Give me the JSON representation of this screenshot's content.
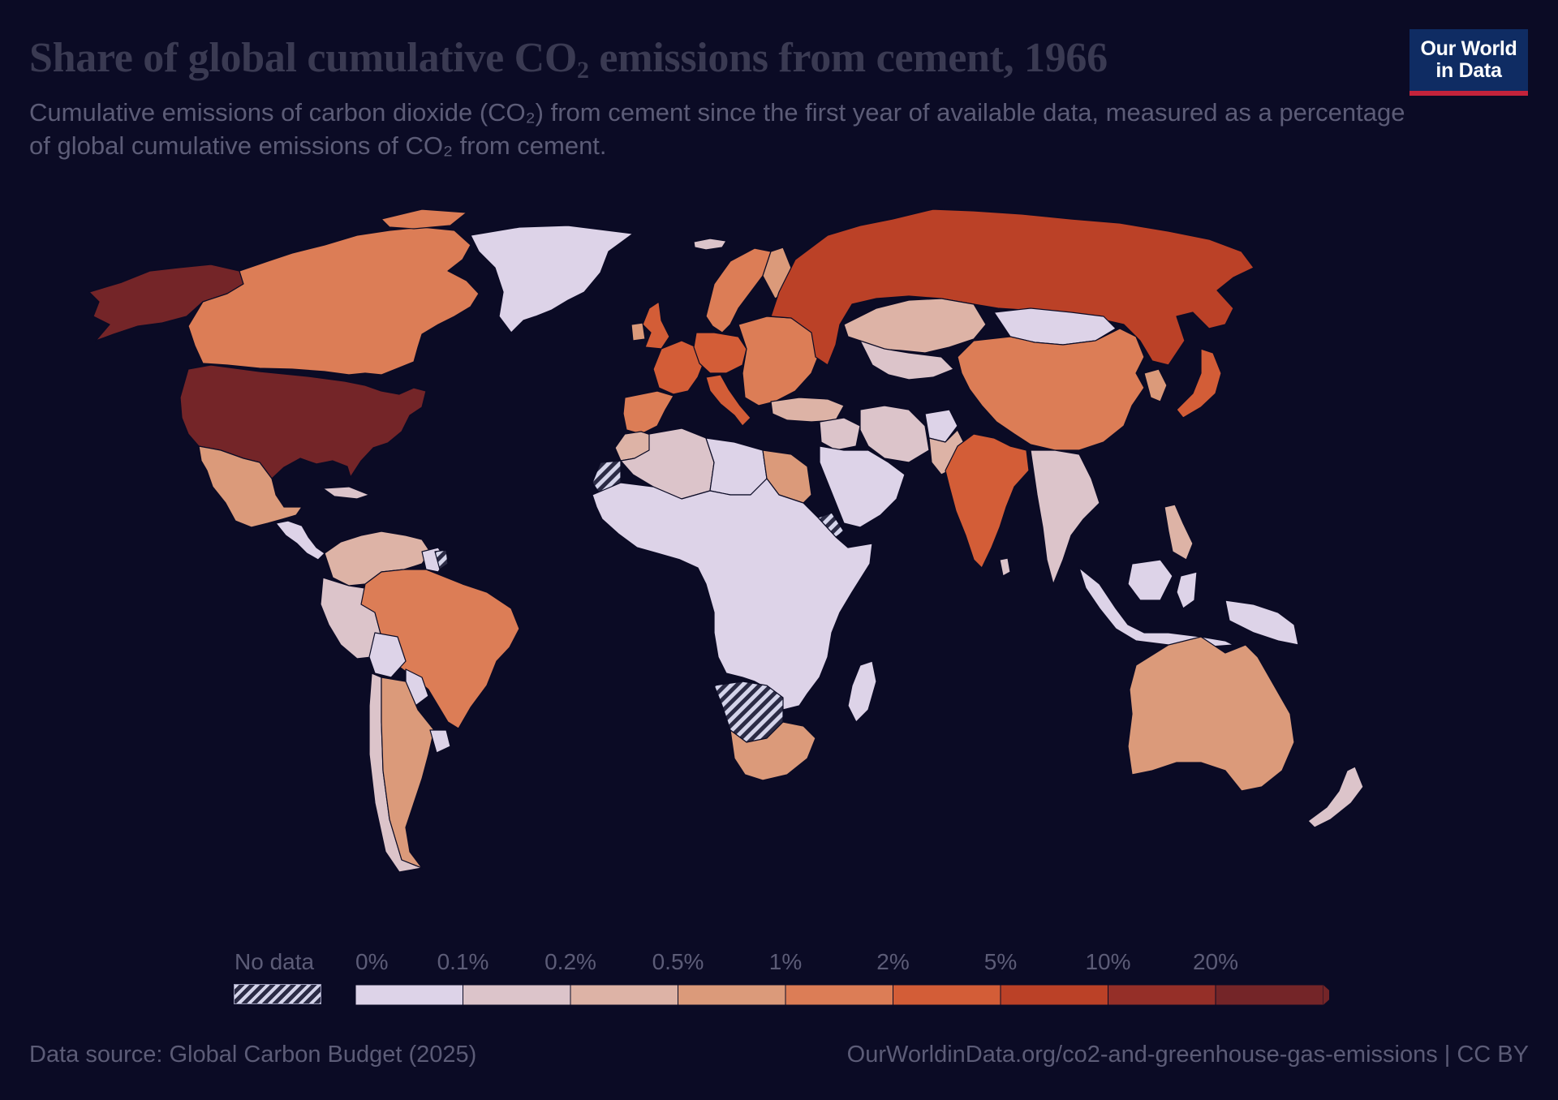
{
  "header": {
    "title_main": "Share of global cumulative CO",
    "title_sub": "2",
    "title_rest": " emissions from cement, 1966",
    "subtitle": "Cumulative emissions of carbon dioxide (CO₂) from cement since the first year of available data, measured as a percentage of global cumulative emissions of CO₂ from cement."
  },
  "logo": {
    "line1": "Our World",
    "line2": "in Data"
  },
  "legend": {
    "no_data_label": "No data",
    "bins": [
      {
        "label": "0%",
        "color": "#ddd3e8"
      },
      {
        "label": "0.1%",
        "color": "#dcc4ca"
      },
      {
        "label": "0.2%",
        "color": "#ddb3a6"
      },
      {
        "label": "0.5%",
        "color": "#db9a7a"
      },
      {
        "label": "1%",
        "color": "#dc7d56"
      },
      {
        "label": "2%",
        "color": "#d35d37"
      },
      {
        "label": "5%",
        "color": "#bb4127"
      },
      {
        "label": "10%",
        "color": "#952f28"
      },
      {
        "label": "20%",
        "color": "#742528"
      }
    ]
  },
  "map_data": {
    "regions": [
      {
        "name": "United States",
        "bin": 8
      },
      {
        "name": "Alaska",
        "bin": 8
      },
      {
        "name": "Canada",
        "bin": 4
      },
      {
        "name": "Greenland",
        "bin": 0
      },
      {
        "name": "Mexico",
        "bin": 3
      },
      {
        "name": "Central America",
        "bin": 0
      },
      {
        "name": "Cuba",
        "bin": 1
      },
      {
        "name": "Colombia & Venezuela",
        "bin": 2
      },
      {
        "name": "Guianas",
        "bin": 0
      },
      {
        "name": "Brazil",
        "bin": 4
      },
      {
        "name": "Peru & Ecuador",
        "bin": 1
      },
      {
        "name": "Bolivia",
        "bin": 0
      },
      {
        "name": "Paraguay",
        "bin": 0
      },
      {
        "name": "Chile",
        "bin": 1
      },
      {
        "name": "Argentina",
        "bin": 3
      },
      {
        "name": "Uruguay",
        "bin": 0
      },
      {
        "name": "Iceland",
        "bin": 1
      },
      {
        "name": "United Kingdom",
        "bin": 5
      },
      {
        "name": "Ireland",
        "bin": 3
      },
      {
        "name": "Scandinavia",
        "bin": 4
      },
      {
        "name": "Finland",
        "bin": 3
      },
      {
        "name": "France",
        "bin": 5
      },
      {
        "name": "Iberia",
        "bin": 4
      },
      {
        "name": "Italy",
        "bin": 5
      },
      {
        "name": "Germany & Central Europe",
        "bin": 5
      },
      {
        "name": "Eastern Europe",
        "bin": 4
      },
      {
        "name": "Turkey",
        "bin": 2
      },
      {
        "name": "Russia",
        "bin": 6
      },
      {
        "name": "Kazakhstan",
        "bin": 2
      },
      {
        "name": "Central Asia",
        "bin": 1
      },
      {
        "name": "Mongolia",
        "bin": 0
      },
      {
        "name": "China",
        "bin": 4
      },
      {
        "name": "Korea",
        "bin": 3
      },
      {
        "name": "Japan",
        "bin": 5
      },
      {
        "name": "Middle East",
        "bin": 1
      },
      {
        "name": "Arabian Peninsula",
        "bin": 0
      },
      {
        "name": "Iran",
        "bin": 1
      },
      {
        "name": "Afghanistan",
        "bin": 0
      },
      {
        "name": "Pakistan",
        "bin": 2
      },
      {
        "name": "India",
        "bin": 5
      },
      {
        "name": "Sri Lanka",
        "bin": 1
      },
      {
        "name": "Southeast Asia",
        "bin": 1
      },
      {
        "name": "Philippines",
        "bin": 2
      },
      {
        "name": "Indonesia",
        "bin": 0
      },
      {
        "name": "New Guinea",
        "bin": 0
      },
      {
        "name": "Australia",
        "bin": 3
      },
      {
        "name": "New Zealand",
        "bin": 1
      },
      {
        "name": "Morocco",
        "bin": 2
      },
      {
        "name": "Algeria",
        "bin": 1
      },
      {
        "name": "Libya",
        "bin": 0
      },
      {
        "name": "Egypt",
        "bin": 3
      },
      {
        "name": "Sub-Saharan Africa",
        "bin": 0
      },
      {
        "name": "South Africa",
        "bin": 3
      },
      {
        "name": "Madagascar",
        "bin": 0
      }
    ],
    "no_data_regions": [
      "Western Sahara",
      "Namibia & Botswana",
      "Eritrea",
      "French Guiana"
    ]
  },
  "footer": {
    "source": "Data source: Global Carbon Budget (2025)",
    "url": "OurWorldinData.org/co2-and-greenhouse-gas-emissions | CC BY"
  }
}
